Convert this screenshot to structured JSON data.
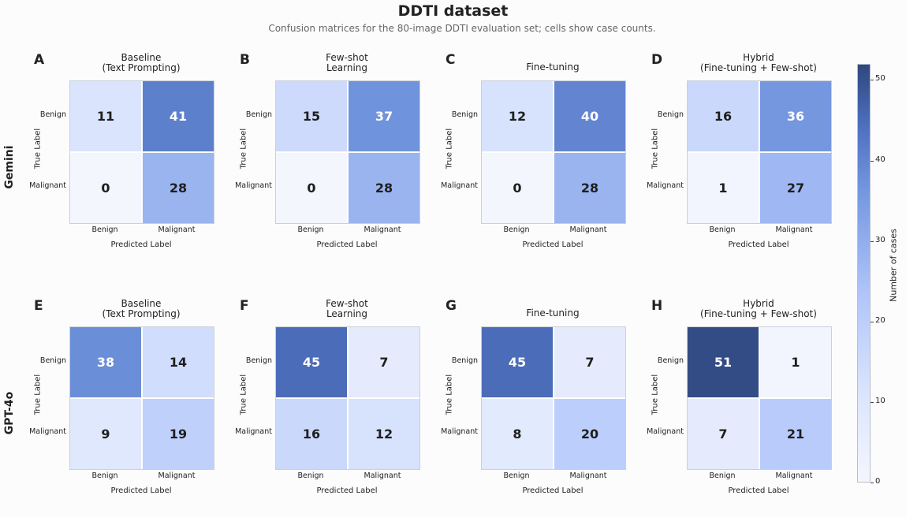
{
  "title": "DDTI dataset",
  "subtitle": "Confusion matrices for the 80-image DDTI evaluation set; cells show case counts.",
  "rows": [
    "Gemini",
    "GPT-4o"
  ],
  "axis": {
    "true_label": "True Label",
    "pred_label": "Predicted Label",
    "classes": [
      "Benign",
      "Malignant"
    ]
  },
  "colorbar": {
    "label": "Number of cases",
    "ticks": [
      "0",
      "10",
      "20",
      "30",
      "40",
      "50"
    ],
    "min": 0,
    "max": 52
  },
  "colors": {
    "low": "#f4f6fe",
    "high": "#2f477e"
  },
  "chart_data": [
    {
      "type": "heatmap",
      "panel": "A",
      "model": "Gemini",
      "title": "Baseline\n(Text Prompting)",
      "values": [
        [
          11,
          41
        ],
        [
          0,
          28
        ]
      ]
    },
    {
      "type": "heatmap",
      "panel": "B",
      "model": "Gemini",
      "title": "Few-shot\nLearning",
      "values": [
        [
          15,
          37
        ],
        [
          0,
          28
        ]
      ]
    },
    {
      "type": "heatmap",
      "panel": "C",
      "model": "Gemini",
      "title": "Fine-tuning",
      "values": [
        [
          12,
          40
        ],
        [
          0,
          28
        ]
      ]
    },
    {
      "type": "heatmap",
      "panel": "D",
      "model": "Gemini",
      "title": "Hybrid\n(Fine-tuning + Few-shot)",
      "values": [
        [
          16,
          36
        ],
        [
          1,
          27
        ]
      ]
    },
    {
      "type": "heatmap",
      "panel": "E",
      "model": "GPT-4o",
      "title": "Baseline\n(Text Prompting)",
      "values": [
        [
          38,
          14
        ],
        [
          9,
          19
        ]
      ]
    },
    {
      "type": "heatmap",
      "panel": "F",
      "model": "GPT-4o",
      "title": "Few-shot\nLearning",
      "values": [
        [
          45,
          7
        ],
        [
          16,
          12
        ]
      ]
    },
    {
      "type": "heatmap",
      "panel": "G",
      "model": "GPT-4o",
      "title": "Fine-tuning",
      "values": [
        [
          45,
          7
        ],
        [
          8,
          20
        ]
      ]
    },
    {
      "type": "heatmap",
      "panel": "H",
      "model": "GPT-4o",
      "title": "Hybrid\n(Fine-tuning + Few-shot)",
      "values": [
        [
          51,
          1
        ],
        [
          7,
          21
        ]
      ]
    }
  ]
}
